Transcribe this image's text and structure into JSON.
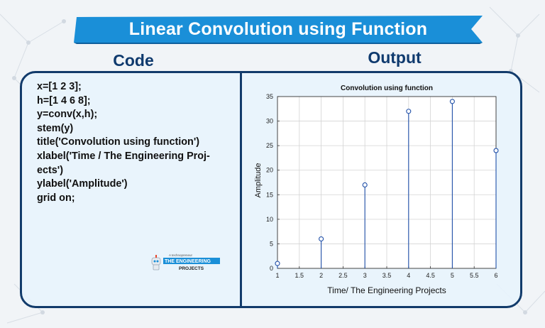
{
  "banner": {
    "title": "Linear Convolution using Function"
  },
  "headings": {
    "code": "Code",
    "output": "Output"
  },
  "code_lines": [
    "x=[1 2 3];",
    "h=[1 4 6 8];",
    "y=conv(x,h);",
    "stem(y)",
    "title('Convolution using function')",
    "xlabel('Time / The Engineering Proj-",
    "ects')",
    "ylabel('Amplitude')",
    "grid on;"
  ],
  "logo": {
    "tagline": "A technopreneur",
    "line1": "THE ENGINEERING",
    "line2": "PROJECTS"
  },
  "colors": {
    "banner": "#1a8fd8",
    "frame": "#123b6b",
    "heading": "#0f3a6e",
    "stem": "#1f4fa8"
  },
  "chart_data": {
    "type": "stem",
    "title": "Convolution using function",
    "xlabel": "Time/ The Engineering Projects",
    "ylabel": "Amplitude",
    "x": [
      1,
      2,
      3,
      4,
      5,
      6
    ],
    "values": [
      1,
      6,
      17,
      32,
      34,
      24
    ],
    "xlim": [
      1,
      6
    ],
    "ylim": [
      0,
      35
    ],
    "x_ticks": [
      "1",
      "1.5",
      "2",
      "2.5",
      "3",
      "3.5",
      "4",
      "4.5",
      "5",
      "5.5",
      "6"
    ],
    "y_ticks": [
      "0",
      "5",
      "10",
      "15",
      "20",
      "25",
      "30",
      "35"
    ],
    "grid": true
  }
}
